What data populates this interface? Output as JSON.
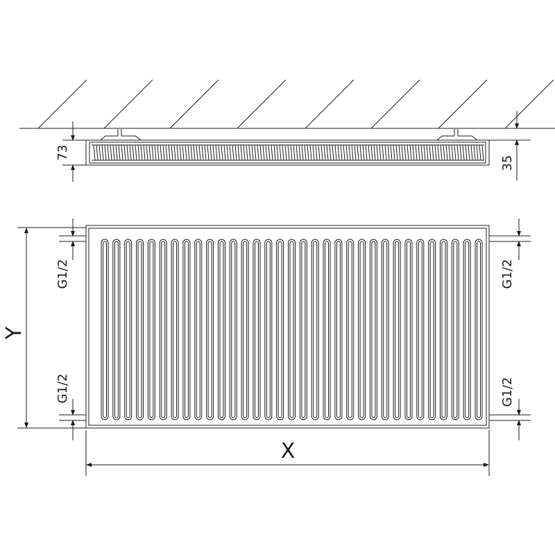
{
  "top_view": {
    "depth_label": "73",
    "wall_gap_label": "35"
  },
  "front_view": {
    "height_label": "Y",
    "width_label": "X",
    "connection_top_left": "G1/2",
    "connection_bottom_left": "G1/2",
    "connection_top_right": "G1/2",
    "connection_bottom_right": "G1/2",
    "channel_count": 33
  },
  "colors": {
    "line": "#1a1a1a",
    "background": "#ffffff"
  }
}
